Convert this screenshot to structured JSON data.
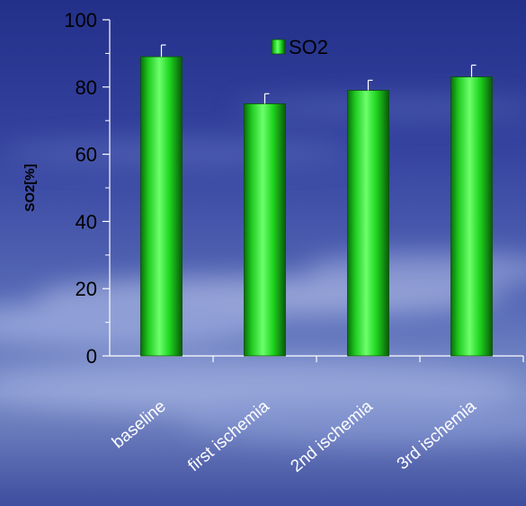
{
  "chart_data": {
    "type": "bar",
    "categories": [
      "baseline",
      "first ischemia",
      "2nd ischemia",
      "3rd ischemia"
    ],
    "series": [
      {
        "name": "SO2",
        "values": [
          89,
          75,
          79,
          83
        ],
        "errors": [
          3.5,
          3,
          3,
          3.5
        ]
      }
    ],
    "ylabel": "SO2[%]",
    "xlabel": "",
    "ylim": [
      0,
      100
    ],
    "yticks": [
      0,
      20,
      40,
      60,
      80,
      100
    ],
    "legend_position": "top-center",
    "grid": false,
    "bar_color": "#12c412",
    "axis_color": "#ffffff"
  }
}
